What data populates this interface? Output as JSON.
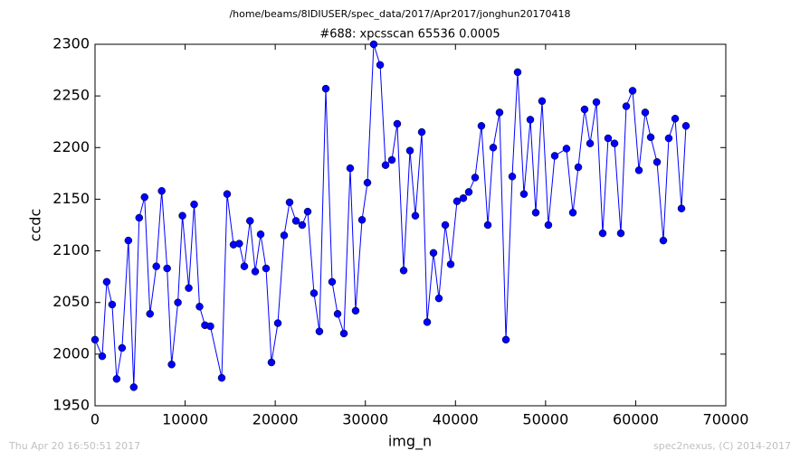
{
  "chart_data": {
    "type": "line",
    "suptitle": "/home/beams/8IDIUSER/spec_data/2017/Apr2017/jonghun20170418",
    "title": "#688: xpcsscan 65536 0.0005",
    "xlabel": "img_n",
    "ylabel": "ccdc",
    "footer_left": "Thu Apr 20 16:50:51 2017",
    "footer_right": "spec2nexus, (C) 2014-2017",
    "color": "#0000ff",
    "marker": true,
    "xlim": [
      0,
      70000
    ],
    "xticks": [
      0,
      10000,
      20000,
      30000,
      40000,
      50000,
      60000,
      70000
    ],
    "ylim": [
      1950,
      2300
    ],
    "yticks": [
      1950,
      2000,
      2050,
      2100,
      2150,
      2200,
      2250,
      2300
    ],
    "x": [
      0,
      800,
      1300,
      1900,
      2400,
      3000,
      3700,
      4300,
      4900,
      5500,
      6100,
      6800,
      7400,
      8000,
      8500,
      9200,
      9700,
      10400,
      11000,
      11600,
      12200,
      12800,
      14060,
      14660,
      15370,
      16000,
      16570,
      17200,
      17780,
      18380,
      18980,
      19580,
      20290,
      20990,
      21590,
      22300,
      22990,
      23600,
      24300,
      24900,
      25610,
      26310,
      26920,
      27620,
      28320,
      28920,
      29630,
      30230,
      30930,
      31640,
      32240,
      32940,
      33540,
      34250,
      34950,
      35550,
      36260,
      36860,
      37560,
      38160,
      38870,
      39470,
      40170,
      40870,
      41480,
      42180,
      42880,
      43590,
      44190,
      44890,
      45600,
      46300,
      46900,
      47600,
      48310,
      48910,
      49610,
      50310,
      51020,
      52320,
      53030,
      53630,
      54330,
      54940,
      55640,
      56340,
      56940,
      57650,
      58350,
      58950,
      59660,
      60360,
      61060,
      61670,
      62370,
      63070,
      63670,
      64380,
      65080,
      65580
    ],
    "values": [
      2014,
      1998,
      2070,
      2048,
      1976,
      2006,
      2110,
      1968,
      2132,
      2152,
      2039,
      2085,
      2158,
      2083,
      1990,
      2050,
      2134,
      2064,
      2145,
      2046,
      2028,
      2027,
      1977,
      2155,
      2106,
      2107,
      2085,
      2129,
      2080,
      2116,
      2083,
      1992,
      2030,
      2115,
      2147,
      2129,
      2125,
      2138,
      2059,
      2022,
      2257,
      2070,
      2039,
      2020,
      2180,
      2042,
      2130,
      2166,
      2300,
      2280,
      2183,
      2188,
      2223,
      2081,
      2197,
      2134,
      2215,
      2031,
      2098,
      2054,
      2125,
      2087,
      2148,
      2151,
      2157,
      2171,
      2221,
      2125,
      2200,
      2234,
      2014,
      2172,
      2273,
      2155,
      2227,
      2137,
      2245,
      2125,
      2192,
      2199,
      2137,
      2181,
      2237,
      2204,
      2244,
      2117,
      2209,
      2204,
      2117,
      2240,
      2255,
      2178,
      2234,
      2210,
      2186,
      2110,
      2209,
      2228,
      2141,
      2221
    ]
  }
}
